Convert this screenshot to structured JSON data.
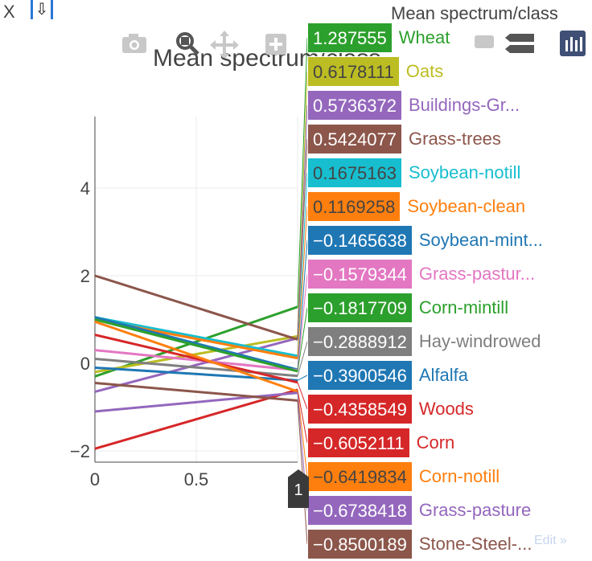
{
  "header": {
    "close_label": "X",
    "collapse_glyph": "⇩",
    "global_title": "Mean spectrum/class"
  },
  "chart_title": "Mean spectrum/class",
  "modebar": {
    "icons": [
      "camera-icon",
      "zoom-icon",
      "pan-icon",
      "zoom-in-icon",
      "zoom-out-icon",
      "autoscale-icon",
      "toggle-spike-icon",
      "plotly-logo-icon"
    ]
  },
  "hover_x_label": "1",
  "edit_link": "Edit »",
  "chart_data": {
    "type": "line",
    "title": "Mean spectrum/class",
    "xlabel": "",
    "ylabel": "",
    "xlim": [
      0,
      1
    ],
    "ylim": [
      -2.3,
      5.5
    ],
    "x_ticks": [
      0,
      0.5,
      1
    ],
    "y_ticks": [
      -2,
      0,
      2,
      4
    ],
    "grid": true,
    "hover_x": 1,
    "series": [
      {
        "name": "Wheat",
        "color": "#2ca02c",
        "x": [
          0,
          1
        ],
        "y": [
          -0.3,
          1.287555
        ],
        "label": "1.287555"
      },
      {
        "name": "Oats",
        "color": "#bcbd22",
        "x": [
          0,
          1
        ],
        "y": [
          -0.2,
          0.6178111
        ],
        "label": "0.6178111"
      },
      {
        "name": "Buildings-Gr...",
        "color": "#9467bd",
        "x": [
          0,
          1
        ],
        "y": [
          -0.65,
          0.5736372
        ],
        "label": "0.5736372"
      },
      {
        "name": "Grass-trees",
        "color": "#8c564b",
        "x": [
          0,
          1
        ],
        "y": [
          2.0,
          0.5424077
        ],
        "label": "0.5424077"
      },
      {
        "name": "Soybean-notill",
        "color": "#17becf",
        "x": [
          0,
          1
        ],
        "y": [
          1.05,
          0.1675163
        ],
        "label": "0.1675163"
      },
      {
        "name": "Soybean-clean",
        "color": "#ff7f0e",
        "x": [
          0,
          1
        ],
        "y": [
          1.0,
          0.1169258
        ],
        "label": "0.1169258"
      },
      {
        "name": "Soybean-mint...",
        "color": "#1f77b4",
        "x": [
          0,
          1
        ],
        "y": [
          1.05,
          -0.1465638
        ],
        "label": "−0.1465638"
      },
      {
        "name": "Grass-pastur...",
        "color": "#e377c2",
        "x": [
          0,
          1
        ],
        "y": [
          0.3,
          -0.1579344
        ],
        "label": "−0.1579344"
      },
      {
        "name": "Corn-mintill",
        "color": "#2ca02c",
        "x": [
          0,
          1
        ],
        "y": [
          1.0,
          -0.1817709
        ],
        "label": "−0.1817709"
      },
      {
        "name": "Hay-windrowed",
        "color": "#7f7f7f",
        "x": [
          0,
          1
        ],
        "y": [
          0.1,
          -0.2888912
        ],
        "label": "−0.2888912"
      },
      {
        "name": "Alfalfa",
        "color": "#1f77b4",
        "x": [
          0,
          1
        ],
        "y": [
          -0.1,
          -0.3900546
        ],
        "label": "−0.3900546"
      },
      {
        "name": "Woods",
        "color": "#d62728",
        "x": [
          0,
          1
        ],
        "y": [
          0.65,
          -0.4358549
        ],
        "label": "−0.4358549"
      },
      {
        "name": "Corn",
        "color": "#d62728",
        "x": [
          0,
          1
        ],
        "y": [
          -1.95,
          -0.6052111
        ],
        "label": "−0.6052111"
      },
      {
        "name": "Corn-notill",
        "color": "#ff7f0e",
        "x": [
          0,
          1
        ],
        "y": [
          0.95,
          -0.6419834
        ],
        "label": "−0.6419834"
      },
      {
        "name": "Grass-pasture",
        "color": "#9467bd",
        "x": [
          0,
          1
        ],
        "y": [
          -1.1,
          -0.6738418
        ],
        "label": "−0.6738418"
      },
      {
        "name": "Stone-Steel-...",
        "color": "#8c564b",
        "x": [
          0,
          1
        ],
        "y": [
          -0.45,
          -0.8500189
        ],
        "label": "−0.8500189"
      }
    ]
  }
}
